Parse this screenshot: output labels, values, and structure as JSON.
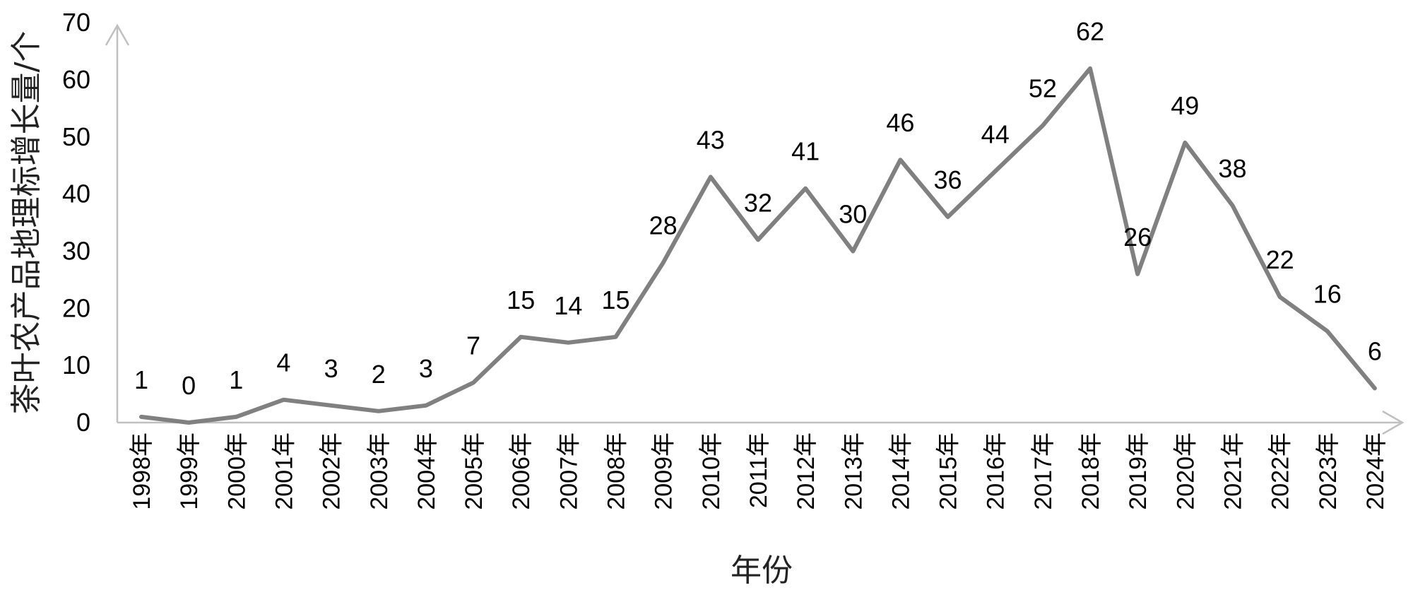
{
  "chart_data": {
    "type": "line",
    "title": "",
    "xlabel": "年份",
    "ylabel": "茶叶农产品地理标增长量/个",
    "ylim": [
      0,
      70
    ],
    "yticks": [
      0,
      10,
      20,
      30,
      40,
      50,
      60,
      70
    ],
    "grid": false,
    "legend": "none",
    "series_color": "#808080",
    "axis_color": "#c0c0c0",
    "categories": [
      "1998年",
      "1999年",
      "2000年",
      "2001年",
      "2002年",
      "2003年",
      "2004年",
      "2005年",
      "2006年",
      "2007年",
      "2008年",
      "2009年",
      "2010年",
      "2011年",
      "2012年",
      "2013年",
      "2014年",
      "2015年",
      "2016年",
      "2017年",
      "2018年",
      "2019年",
      "2020年",
      "2021年",
      "2022年",
      "2023年",
      "2024年"
    ],
    "values": [
      1,
      0,
      1,
      4,
      3,
      2,
      3,
      7,
      15,
      14,
      15,
      28,
      43,
      32,
      41,
      30,
      46,
      36,
      44,
      52,
      62,
      26,
      49,
      38,
      22,
      16,
      6
    ]
  }
}
